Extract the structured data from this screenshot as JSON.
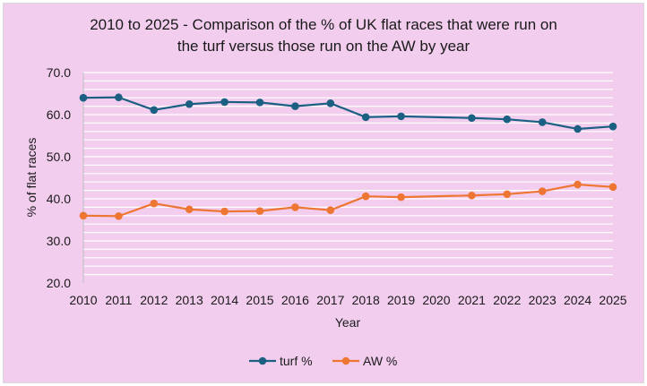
{
  "chart_data": {
    "type": "line",
    "title_lines": [
      "2010 to 2025 - Comparison of the % of UK flat races that were run on",
      "the turf versus those run on the AW by year"
    ],
    "xlabel": "Year",
    "ylabel": "% of flat races",
    "categories": [
      "2010",
      "2011",
      "2012",
      "2013",
      "2014",
      "2015",
      "2016",
      "2017",
      "2018",
      "2019",
      "2020",
      "2021",
      "2022",
      "2023",
      "2024",
      "2025"
    ],
    "ylim": [
      20,
      70
    ],
    "y_ticks": [
      "20.0",
      "30.0",
      "40.0",
      "50.0",
      "60.0",
      "70.0"
    ],
    "y_tick_values": [
      20,
      30,
      40,
      50,
      60,
      70
    ],
    "minor_grid_step": 2,
    "grid": true,
    "legend_position": "bottom",
    "series": [
      {
        "name": "turf %",
        "color": "#1b5f82",
        "values": [
          64.0,
          64.1,
          61.1,
          62.5,
          63.0,
          62.9,
          62.0,
          62.7,
          59.4,
          59.6,
          null,
          59.2,
          58.9,
          58.2,
          56.6,
          57.2
        ]
      },
      {
        "name": "AW %",
        "color": "#ee7633",
        "values": [
          36.0,
          35.9,
          38.9,
          37.5,
          37.0,
          37.1,
          38.0,
          37.3,
          40.6,
          40.4,
          null,
          40.8,
          41.1,
          41.8,
          43.4,
          42.8
        ]
      }
    ]
  }
}
